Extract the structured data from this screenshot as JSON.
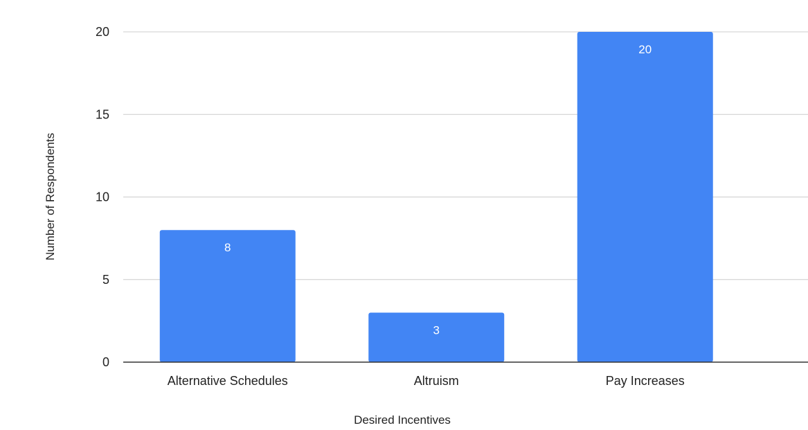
{
  "chart_data": {
    "type": "bar",
    "title": "",
    "xlabel": "Desired Incentives",
    "ylabel": "Number of Respondents",
    "categories": [
      "Alternative Schedules",
      "Altruism",
      "Pay Increases"
    ],
    "values": [
      8,
      3,
      20
    ],
    "data_labels": [
      "8",
      "3",
      "20"
    ],
    "ylim": [
      0,
      20
    ],
    "yticks": [
      0,
      5,
      10,
      15,
      20
    ],
    "grid": true,
    "legend": "none",
    "colors": {
      "bar": "#4285f4",
      "grid": "#cccccc",
      "baseline": "#333333",
      "data_label": "#ffffff"
    }
  }
}
